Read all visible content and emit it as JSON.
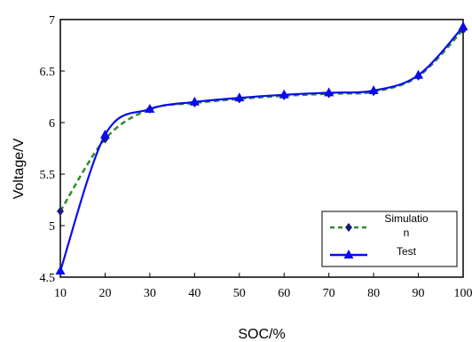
{
  "chart_data": {
    "type": "line",
    "xlabel": "SOC/%",
    "ylabel": "Voltage/V",
    "xlim": [
      10,
      100
    ],
    "ylim": [
      4.5,
      7
    ],
    "x_ticks": [
      10,
      20,
      30,
      40,
      50,
      60,
      70,
      80,
      90,
      100
    ],
    "y_ticks": [
      4.5,
      5,
      5.5,
      6,
      6.5,
      7
    ],
    "y_tick_labels": [
      "4.5",
      "5",
      "5.5",
      "6",
      "6.5",
      "7"
    ],
    "grid": false,
    "legend_position": "bottom-right",
    "series": [
      {
        "name": "Simulation",
        "legend_lines": [
          "Simulatio",
          "n"
        ],
        "style": "dashed",
        "marker": "diamond",
        "color": "#2e8b2e",
        "marker_color": "#1a1a7a",
        "x": [
          10,
          20,
          30,
          40,
          50,
          60,
          70,
          80,
          90,
          100
        ],
        "y": [
          5.14,
          5.84,
          6.13,
          6.19,
          6.23,
          6.26,
          6.28,
          6.3,
          6.45,
          6.9
        ]
      },
      {
        "name": "Test",
        "legend_lines": [
          "Test"
        ],
        "style": "solid",
        "marker": "triangle",
        "color": "#0a0af0",
        "marker_color": "#0a0af0",
        "x": [
          10,
          20,
          30,
          40,
          50,
          60,
          70,
          80,
          90,
          100
        ],
        "y": [
          4.56,
          5.88,
          6.13,
          6.2,
          6.24,
          6.27,
          6.29,
          6.31,
          6.46,
          6.93
        ]
      }
    ]
  }
}
